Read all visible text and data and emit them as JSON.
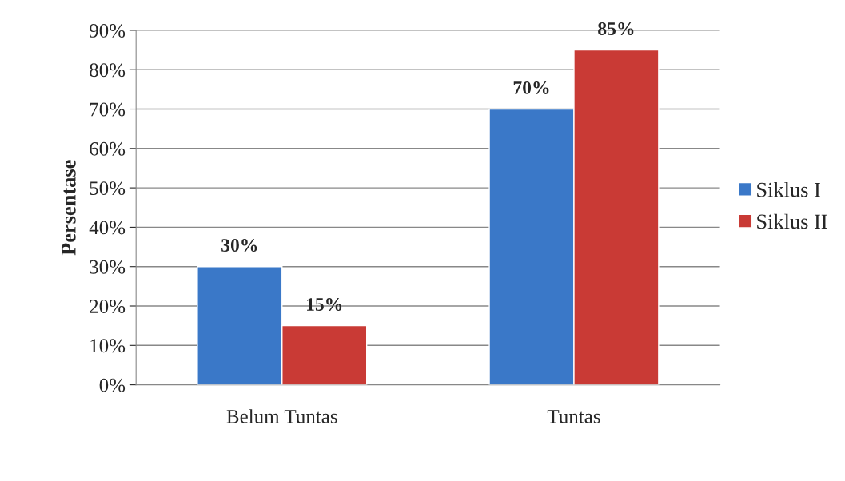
{
  "chart_data": {
    "type": "bar",
    "ylabel": "Persentase",
    "categories": [
      "Belum Tuntas",
      "Tuntas"
    ],
    "series": [
      {
        "name": "Siklus I",
        "color": "#3a78c8",
        "values": [
          30,
          70
        ],
        "value_labels": [
          "30%",
          "70%"
        ]
      },
      {
        "name": "Siklus II",
        "color": "#c93a35",
        "values": [
          15,
          85
        ],
        "value_labels": [
          "15%",
          "85%"
        ]
      }
    ],
    "ylim": [
      0,
      90
    ],
    "yticks": [
      {
        "value": 0,
        "label": "0%"
      },
      {
        "value": 10,
        "label": "10%"
      },
      {
        "value": 20,
        "label": "20%"
      },
      {
        "value": 30,
        "label": "30%"
      },
      {
        "value": 40,
        "label": "40%"
      },
      {
        "value": 50,
        "label": "50%"
      },
      {
        "value": 60,
        "label": "60%"
      },
      {
        "value": 70,
        "label": "70%"
      },
      {
        "value": 80,
        "label": "80%"
      },
      {
        "value": 90,
        "label": "90%"
      }
    ],
    "grid": "y",
    "legend": "right"
  }
}
